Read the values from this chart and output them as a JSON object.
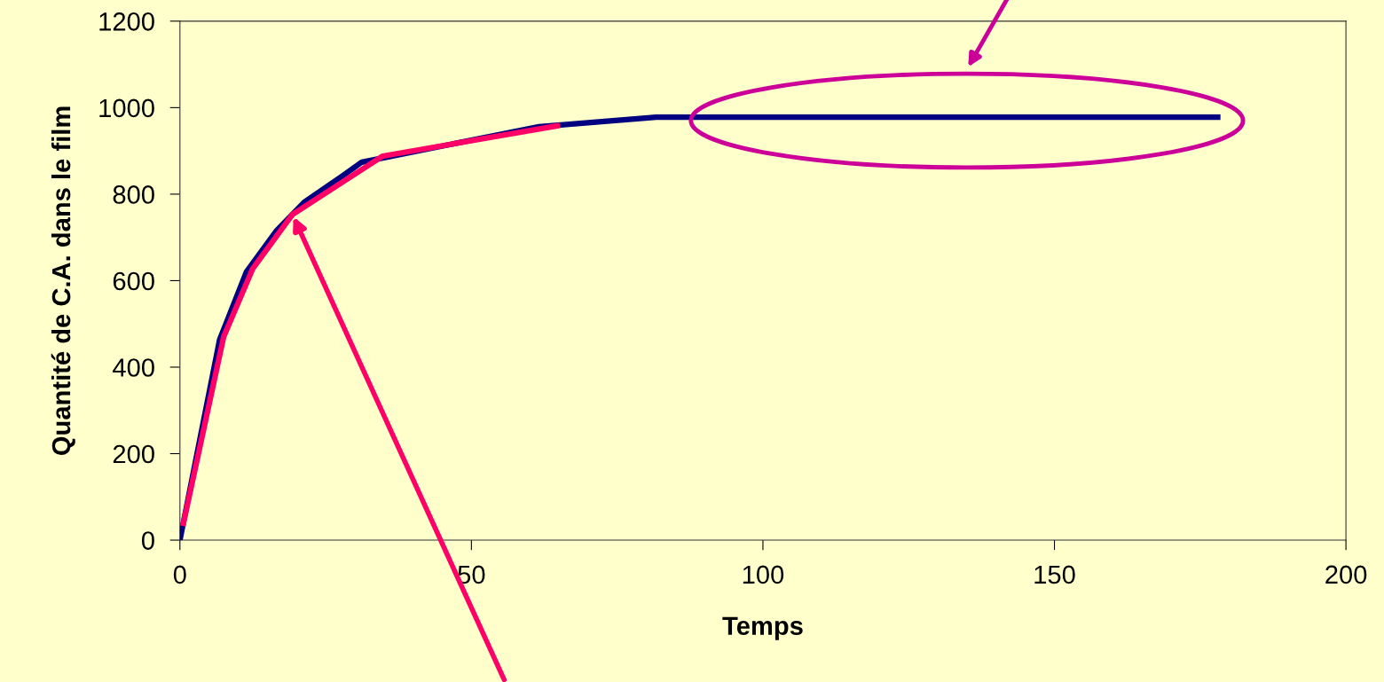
{
  "chart_data": {
    "type": "line",
    "xlabel": "Temps",
    "ylabel": "Quantité de C.A. dans le film",
    "xlim": [
      0,
      200
    ],
    "xticks": [
      0,
      50,
      100,
      150,
      200
    ],
    "ylim": [
      0,
      1200
    ],
    "yticks": [
      0,
      200,
      400,
      600,
      800,
      1000,
      1200
    ],
    "grid": false,
    "legend": false,
    "marker": "none",
    "line_style": "solid",
    "series": [
      {
        "color": "#000080",
        "x": [
          0,
          6.8,
          11.4,
          16.6,
          21.3,
          28,
          31.2,
          61.6,
          81.7,
          178
        ],
        "values": [
          0,
          463,
          620,
          716,
          781,
          843,
          874,
          956,
          978,
          978
        ]
      },
      {
        "color": "#ff0066",
        "x": [
          0.6,
          7.5,
          12.5,
          19.3,
          34.8,
          64.7
        ],
        "values": [
          39,
          470,
          628,
          753,
          888,
          958
        ]
      }
    ]
  }
}
